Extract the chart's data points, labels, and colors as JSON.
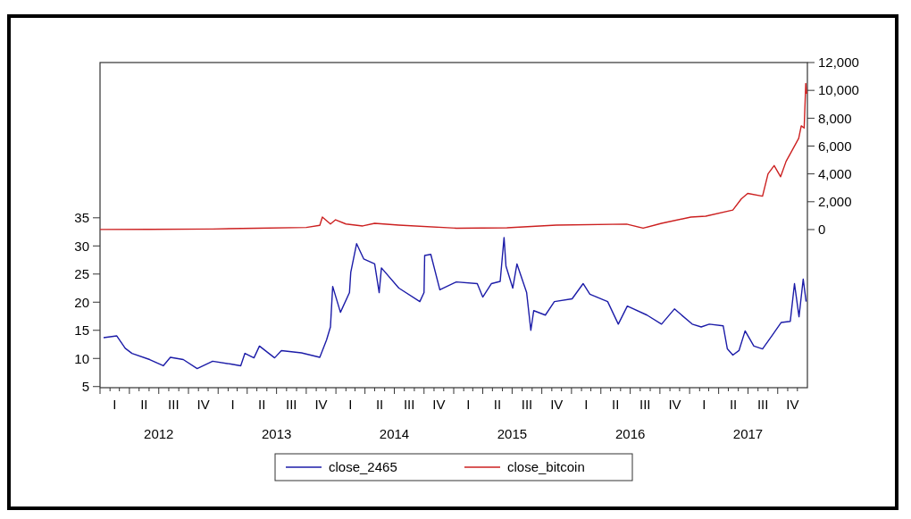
{
  "chart_data": {
    "type": "line",
    "legend": "bottom",
    "grid": false,
    "xlim": [
      "2012-01-01",
      "2018-01-01"
    ],
    "xticks": [
      {
        "value": "2012-07-01",
        "label": "2012"
      },
      {
        "value": "2013-07-01",
        "label": "2013"
      },
      {
        "value": "2014-07-01",
        "label": "2014"
      },
      {
        "value": "2015-07-01",
        "label": "2015"
      },
      {
        "value": "2016-07-01",
        "label": "2016"
      },
      {
        "value": "2017-07-01",
        "label": "2017"
      }
    ],
    "annotations": [
      "I",
      "II",
      "III",
      "IV",
      "I",
      "II",
      "III",
      "IV",
      "I",
      "II",
      "III",
      "IV",
      "I",
      "II",
      "III",
      "IV",
      "I",
      "II",
      "III",
      "IV",
      "I",
      "II",
      "III",
      "IV"
    ],
    "ylim": [
      4.8,
      62.6
    ],
    "yticks": [
      5,
      10,
      15,
      20,
      25,
      30,
      35
    ],
    "y2lim": [
      -11360,
      12000
    ],
    "y2ticks": [
      {
        "value": 0,
        "label": "0"
      },
      {
        "value": 2000,
        "label": "2,000"
      },
      {
        "value": 4000,
        "label": "4,000"
      },
      {
        "value": 6000,
        "label": "6,000"
      },
      {
        "value": 8000,
        "label": "8,000"
      },
      {
        "value": 10000,
        "label": "10,000"
      },
      {
        "value": 12000,
        "label": "12,000"
      }
    ],
    "series": [
      {
        "name": "close_2465",
        "color": "#1c1ca8",
        "x": [
          "2012-01-12",
          "2012-02-22",
          "2012-03-19",
          "2012-04-09",
          "2012-06-03",
          "2012-07-15",
          "2012-08-06",
          "2012-09-15",
          "2012-10-28",
          "2012-12-15",
          "2013-02-09",
          "2013-03-12",
          "2013-03-25",
          "2013-04-22",
          "2013-05-09",
          "2013-06-25",
          "2013-07-16",
          "2013-09-16",
          "2013-11-12",
          "2013-12-03",
          "2013-12-15",
          "2013-12-22",
          "2014-01-15",
          "2014-02-12",
          "2014-02-16",
          "2014-03-06",
          "2014-03-28",
          "2014-05-01",
          "2014-05-15",
          "2014-05-22",
          "2014-07-15",
          "2014-09-18",
          "2014-10-01",
          "2014-10-03",
          "2014-10-22",
          "2014-11-19",
          "2015-01-09",
          "2015-03-15",
          "2015-04-01",
          "2015-04-28",
          "2015-05-25",
          "2015-06-06",
          "2015-06-12",
          "2015-07-03",
          "2015-07-16",
          "2015-08-15",
          "2015-08-28",
          "2015-09-06",
          "2015-10-12",
          "2015-11-09",
          "2016-01-03",
          "2016-02-06",
          "2016-02-27",
          "2016-04-22",
          "2016-05-25",
          "2016-06-22",
          "2016-08-22",
          "2016-10-06",
          "2016-11-15",
          "2017-01-09",
          "2017-02-06",
          "2017-03-03",
          "2017-04-15",
          "2017-04-28",
          "2017-05-15",
          "2017-06-03",
          "2017-06-22",
          "2017-07-19",
          "2017-08-15",
          "2017-09-15",
          "2017-10-12",
          "2017-11-09",
          "2017-11-22",
          "2017-12-06",
          "2017-12-19",
          "2017-12-28"
        ],
        "values": [
          13.7,
          14.0,
          11.8,
          10.9,
          9.8,
          8.7,
          10.2,
          9.8,
          8.2,
          9.5,
          9.0,
          8.7,
          10.9,
          10.1,
          12.2,
          10.1,
          11.4,
          11.0,
          10.2,
          13.3,
          15.6,
          22.8,
          18.2,
          21.7,
          25.3,
          30.4,
          27.7,
          26.8,
          21.7,
          26.1,
          22.5,
          20.1,
          21.7,
          28.3,
          28.5,
          22.2,
          23.6,
          23.3,
          20.9,
          23.3,
          23.7,
          31.5,
          26.4,
          22.5,
          26.8,
          21.7,
          15.0,
          18.5,
          17.7,
          20.1,
          20.6,
          23.3,
          21.4,
          20.1,
          16.1,
          19.3,
          17.7,
          16.1,
          18.8,
          16.1,
          15.6,
          16.1,
          15.8,
          11.7,
          10.6,
          11.4,
          14.9,
          12.2,
          11.7,
          14.2,
          16.4,
          16.6,
          23.3,
          17.4,
          24.1,
          20.1
        ]
      },
      {
        "name": "close_bitcoin",
        "color": "#cc2020",
        "axis": "y2",
        "x": [
          "2012-01-01",
          "2012-06-03",
          "2012-12-15",
          "2013-05-01",
          "2013-10-01",
          "2013-11-12",
          "2013-11-20",
          "2013-12-15",
          "2013-12-31",
          "2014-02-01",
          "2014-03-25",
          "2014-05-01",
          "2014-07-15",
          "2015-01-09",
          "2015-06-15",
          "2015-11-15",
          "2016-06-20",
          "2016-08-10",
          "2016-10-06",
          "2017-01-05",
          "2017-02-20",
          "2017-05-15",
          "2017-06-10",
          "2017-06-30",
          "2017-08-15",
          "2017-09-01",
          "2017-09-20",
          "2017-10-10",
          "2017-10-27",
          "2017-11-15",
          "2017-12-05",
          "2017-12-13",
          "2017-12-22",
          "2017-12-27",
          "2017-12-30"
        ],
        "values": [
          10,
          20,
          40,
          100,
          150,
          300,
          900,
          400,
          700,
          400,
          260,
          450,
          320,
          100,
          130,
          320,
          390,
          100,
          450,
          900,
          960,
          1400,
          2200,
          2600,
          2400,
          4000,
          4600,
          3800,
          4900,
          5700,
          6550,
          7450,
          7300,
          10500,
          9750
        ]
      }
    ]
  }
}
